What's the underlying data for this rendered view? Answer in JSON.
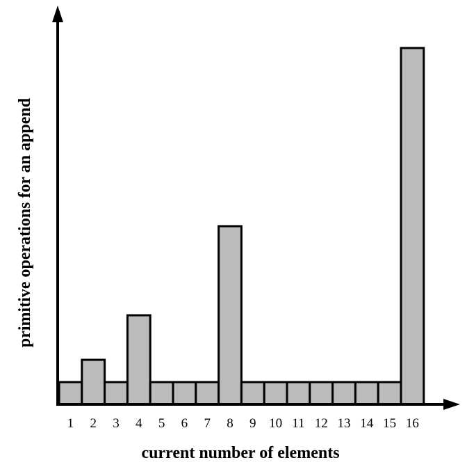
{
  "chart_data": {
    "type": "bar",
    "title": "",
    "xlabel": "current number of elements",
    "ylabel": "primitive operations for an append",
    "categories": [
      "1",
      "2",
      "3",
      "4",
      "5",
      "6",
      "7",
      "8",
      "9",
      "10",
      "11",
      "12",
      "13",
      "14",
      "15",
      "16"
    ],
    "values": [
      1,
      2,
      1,
      4,
      1,
      1,
      1,
      8,
      1,
      1,
      1,
      1,
      1,
      1,
      1,
      16
    ],
    "ylim": [
      0,
      16
    ],
    "grid": false,
    "legend": "none",
    "bar_color": "#bbbbbb",
    "bar_stroke_color": "#000000",
    "axis_color": "#000000"
  }
}
